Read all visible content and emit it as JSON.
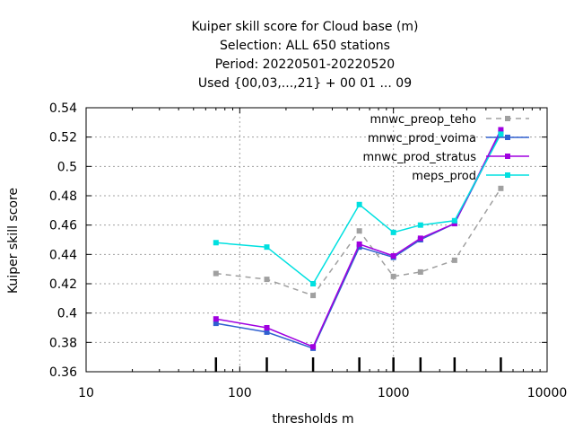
{
  "chart_data": {
    "type": "line",
    "title_lines": [
      "Kuiper skill score  for Cloud base (m)",
      "Selection: ALL    650 stations",
      "Period: 20220501-20220520",
      "Used {00,03,...,21} + 00 01 ... 09"
    ],
    "xlabel": "thresholds m",
    "ylabel": "Kuiper skill score",
    "xscale": "log",
    "xlim": [
      10,
      10000
    ],
    "ylim": [
      0.36,
      0.54
    ],
    "x_ticks": [
      10,
      100,
      1000,
      10000
    ],
    "x_tick_labels": [
      "10",
      "100",
      "1000",
      "10000"
    ],
    "y_ticks": [
      0.36,
      0.38,
      0.4,
      0.42,
      0.44,
      0.46,
      0.48,
      0.5,
      0.52,
      0.54
    ],
    "y_tick_labels": [
      "0.36",
      "0.38",
      "0.4",
      "0.42",
      "0.44",
      "0.46",
      "0.48",
      "0.5",
      "0.52",
      "0.54"
    ],
    "grid": true,
    "legend_position": "top-right",
    "threshold_markers": [
      70,
      150,
      300,
      600,
      1000,
      1500,
      2500,
      5000
    ],
    "x": [
      70,
      150,
      300,
      600,
      1000,
      1500,
      2500,
      5000
    ],
    "series": [
      {
        "name": "mnwc_preop_teho",
        "color": "#a0a0a0",
        "dashed": true,
        "values": [
          0.427,
          0.423,
          0.412,
          0.456,
          0.425,
          0.428,
          0.436,
          0.485
        ]
      },
      {
        "name": "mnwc_prod_voima",
        "color": "#3060d0",
        "dashed": false,
        "values": [
          0.393,
          0.387,
          0.376,
          0.445,
          0.438,
          0.45,
          0.461,
          0.523
        ]
      },
      {
        "name": "mnwc_prod_stratus",
        "color": "#a000e0",
        "dashed": false,
        "values": [
          0.396,
          0.39,
          0.377,
          0.447,
          0.439,
          0.451,
          0.461,
          0.525
        ]
      },
      {
        "name": "meps_prod",
        "color": "#00e0e0",
        "dashed": false,
        "values": [
          0.448,
          0.445,
          0.42,
          0.474,
          0.455,
          0.46,
          0.463,
          0.522
        ]
      }
    ]
  }
}
